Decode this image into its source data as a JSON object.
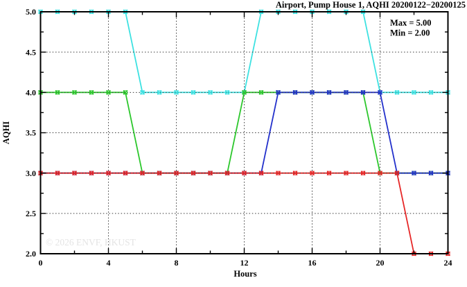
{
  "window": {
    "background": "#ffffff"
  },
  "annotation": {
    "max_label": "Max = 5.00",
    "min_label": "Min = 2.00"
  },
  "watermark": "© 2026 ENVF, HKUST",
  "chart_data": {
    "type": "line",
    "title": "Airport, Pump House 1, AQHI 20200122−20200125",
    "xlabel": "Hours",
    "ylabel": "AQHI",
    "xlim": [
      0,
      24
    ],
    "ylim": [
      2.0,
      5.0
    ],
    "grid": "dotted black gridlines drawn over data lines; vertical at x=4,8,12,16,20; horizontal at y=2.5,3.0,3.5,4.0,4.5",
    "legend": "none",
    "x_major_ticks": [
      0,
      4,
      8,
      12,
      16,
      20,
      24
    ],
    "x_tick_labels": [
      "0",
      "4",
      "8",
      "12",
      "16",
      "20",
      "24"
    ],
    "x_minor_ticks": [
      2,
      6,
      10,
      14,
      18,
      22
    ],
    "y_major_ticks": [
      2.0,
      2.5,
      3.0,
      3.5,
      4.0,
      4.5,
      5.0
    ],
    "y_tick_labels": [
      "2.0",
      "2.5",
      "3.0",
      "3.5",
      "4.0",
      "4.5",
      "5.0"
    ],
    "y_minor_ticks": [
      2.25,
      2.75,
      3.25,
      3.75,
      4.25,
      4.75
    ],
    "x": [
      0,
      1,
      2,
      3,
      4,
      5,
      6,
      7,
      8,
      9,
      10,
      11,
      12,
      13,
      14,
      15,
      16,
      17,
      18,
      19,
      20,
      21,
      22,
      23,
      24
    ],
    "series": [
      {
        "name": "cyan",
        "color": "#3CE1E1",
        "values": [
          5,
          5,
          5,
          5,
          5,
          5,
          4,
          4,
          4,
          4,
          4,
          4,
          4,
          5,
          5,
          5,
          5,
          5,
          5,
          5,
          4,
          4,
          4,
          4,
          4
        ]
      },
      {
        "name": "green",
        "color": "#2CC72C",
        "values": [
          4,
          4,
          4,
          4,
          4,
          4,
          3,
          3,
          3,
          3,
          3,
          3,
          4,
          4,
          4,
          4,
          4,
          4,
          4,
          4,
          3,
          3,
          3,
          3,
          3
        ]
      },
      {
        "name": "blue",
        "color": "#2230CB",
        "values": [
          3,
          3,
          3,
          3,
          3,
          3,
          3,
          3,
          3,
          3,
          3,
          3,
          3,
          3,
          4,
          4,
          4,
          4,
          4,
          4,
          4,
          3,
          3,
          3,
          3
        ]
      },
      {
        "name": "red",
        "color": "#E62626",
        "values": [
          3,
          3,
          3,
          3,
          3,
          3,
          3,
          3,
          3,
          3,
          3,
          3,
          3,
          3,
          3,
          3,
          3,
          3,
          3,
          3,
          3,
          3,
          2,
          2,
          2
        ]
      }
    ],
    "annotations": [
      "Max = 5.00",
      "Min = 2.00"
    ],
    "marker": "boxed-x point marker at every hour"
  }
}
